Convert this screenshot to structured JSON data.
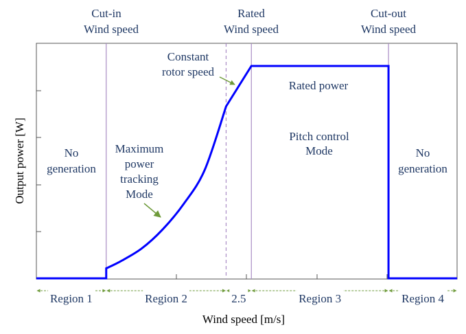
{
  "chart_data": {
    "type": "line",
    "xlabel": "Wind speed [m/s]",
    "ylabel": "Output power [W]",
    "curve_color": "#0000ff",
    "boundary_color": "#a98bc4",
    "arrow_color": "#6e9a3a",
    "text_color": "#1f3864",
    "x_range": [
      0,
      100
    ],
    "y_range": [
      0,
      100
    ],
    "boundaries": [
      {
        "x": 16.6,
        "label_lines": [
          "Cut-in",
          "Wind speed"
        ],
        "style": "solid"
      },
      {
        "x": 45.1,
        "label_lines": [],
        "style": "dashed"
      },
      {
        "x": 51.1,
        "label_lines": [
          "Rated",
          "Wind speed"
        ],
        "style": "solid"
      },
      {
        "x": 83.7,
        "label_lines": [
          "Cut-out",
          "Wind speed"
        ],
        "style": "solid"
      }
    ],
    "series": [
      {
        "x": [
          0,
          16.6,
          16.6,
          20,
          25,
          30,
          35,
          40,
          45.1,
          51.1,
          83.7,
          83.7,
          100
        ],
        "y": [
          0,
          0,
          4.7,
          8,
          14,
          23,
          35,
          51,
          81,
          100,
          100,
          0,
          0
        ]
      }
    ],
    "annotations": {
      "region1_text": [
        "No",
        "generation"
      ],
      "region2_text": [
        "Maximum",
        "power",
        "tracking",
        "Mode"
      ],
      "constant_text": [
        "Constant",
        "rotor speed"
      ],
      "rated_power_text": "Rated power",
      "pitch_text": [
        "Pitch control",
        "Mode"
      ],
      "region4_text": [
        "No",
        "generation"
      ]
    },
    "regions": [
      {
        "label": "Region 1",
        "from": 0,
        "to": 16.6
      },
      {
        "label": "Region 2",
        "from": 16.6,
        "to": 45.1
      },
      {
        "label": "2.5",
        "from": 45.1,
        "to": 51.1
      },
      {
        "label": "Region 3",
        "from": 51.1,
        "to": 83.7
      },
      {
        "label": "Region 4",
        "from": 83.7,
        "to": 100
      }
    ]
  }
}
